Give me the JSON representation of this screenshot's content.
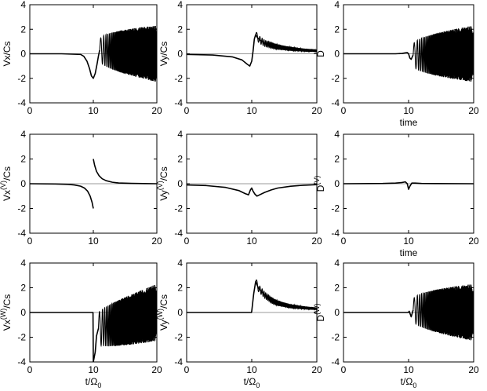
{
  "chart_data": [
    {
      "type": "line",
      "id": "p11",
      "ylabel": "Vx/Cs",
      "ylabel_sup": "",
      "xlabel": "",
      "xlabel_sub": "",
      "xlim": [
        0,
        20
      ],
      "ylim": [
        -4,
        4
      ],
      "xticks": [
        "0",
        "10",
        "20"
      ],
      "yticks": [
        "-4",
        "-2",
        "0",
        "2",
        "4"
      ],
      "x": [
        0,
        5,
        8,
        8.5,
        9,
        9.4,
        9.7,
        10,
        10.3,
        10.6,
        10.8,
        11
      ],
      "y": [
        0,
        0,
        -0.05,
        -0.2,
        -0.6,
        -1.2,
        -1.8,
        -2.0,
        -1.6,
        -0.8,
        -0.2,
        0.3
      ],
      "oscillation": {
        "start": 11,
        "end": 20,
        "amp_start": 0.8,
        "amp_end": 2.3
      }
    },
    {
      "type": "line",
      "id": "p12",
      "ylabel": "Vy/Cs",
      "ylabel_sup": "",
      "xlabel": "",
      "xlabel_sub": "",
      "xlim": [
        0,
        20
      ],
      "ylim": [
        -4,
        4
      ],
      "xticks": [
        "0",
        "10",
        "20"
      ],
      "yticks": [
        "-4",
        "-2",
        "0",
        "2",
        "4"
      ],
      "x": [
        0,
        4,
        7,
        8.5,
        9.3,
        9.7,
        10.0,
        10.2,
        10.4,
        10.6,
        10.9,
        11.3,
        12,
        13,
        14,
        16,
        18,
        20
      ],
      "y": [
        -0.05,
        -0.1,
        -0.25,
        -0.5,
        -0.85,
        -1.0,
        -0.6,
        0.2,
        1.2,
        1.55,
        1.3,
        1.1,
        0.85,
        0.7,
        0.55,
        0.4,
        0.3,
        0.25
      ],
      "oscillation": {
        "start": 10.6,
        "end": 20,
        "amp_start": 0.35,
        "amp_end": 0.1
      }
    },
    {
      "type": "line",
      "id": "p13",
      "ylabel": "D",
      "ylabel_sup": "",
      "xlabel": "time",
      "xlabel_sub": "",
      "xlim": [
        0,
        20
      ],
      "ylim": [
        -4,
        4
      ],
      "xticks": [
        "0",
        "10",
        "20"
      ],
      "yticks": [
        "-4",
        "-2",
        "0",
        "2",
        "4"
      ],
      "x": [
        0,
        8,
        9,
        9.5,
        9.8,
        10.0,
        10.2,
        10.4,
        10.7
      ],
      "y": [
        0,
        0,
        0.03,
        0.08,
        0.1,
        0,
        -0.35,
        -0.45,
        -0.1
      ],
      "oscillation": {
        "start": 10.7,
        "end": 20,
        "amp_start": 0.8,
        "amp_end": 2.3
      }
    },
    {
      "type": "line",
      "id": "p21",
      "ylabel": "Vx",
      "ylabel_sup": "(V)",
      "ylabel_suffix": "/Cs",
      "xlabel": "",
      "xlabel_sub": "",
      "xlim": [
        0,
        20
      ],
      "ylim": [
        -4,
        4
      ],
      "xticks": [
        "0",
        "10",
        "20"
      ],
      "yticks": [
        "-4",
        "-2",
        "0",
        "2",
        "4"
      ],
      "segments": [
        {
          "x": [
            0,
            4,
            6,
            7,
            8,
            8.6,
            9.1,
            9.5,
            9.8,
            10
          ],
          "y": [
            0,
            -0.02,
            -0.05,
            -0.1,
            -0.2,
            -0.35,
            -0.6,
            -1.0,
            -1.5,
            -2.0
          ]
        },
        {
          "x": [
            10,
            10.2,
            10.5,
            10.9,
            11.4,
            12,
            13,
            14,
            16,
            18,
            20
          ],
          "y": [
            2.0,
            1.5,
            1.0,
            0.65,
            0.4,
            0.25,
            0.12,
            0.06,
            0.03,
            0.01,
            0
          ]
        }
      ]
    },
    {
      "type": "line",
      "id": "p22",
      "ylabel": "Vy",
      "ylabel_sup": "(V)",
      "ylabel_suffix": "/Cs",
      "xlabel": "",
      "xlabel_sub": "",
      "xlim": [
        0,
        20
      ],
      "ylim": [
        -4,
        4
      ],
      "xticks": [
        "0",
        "10",
        "20"
      ],
      "yticks": [
        "-4",
        "-2",
        "0",
        "2",
        "4"
      ],
      "x": [
        0,
        3,
        6,
        8,
        9,
        9.5,
        9.8,
        10.0,
        10.2,
        10.5,
        10.8,
        11.2,
        12,
        13,
        14,
        16,
        18,
        20
      ],
      "y": [
        -0.1,
        -0.15,
        -0.3,
        -0.55,
        -0.8,
        -0.9,
        -0.5,
        -0.35,
        -0.6,
        -0.85,
        -1.0,
        -0.9,
        -0.7,
        -0.5,
        -0.35,
        -0.2,
        -0.12,
        -0.08
      ]
    },
    {
      "type": "line",
      "id": "p23",
      "ylabel": "D",
      "ylabel_sup": "(V)",
      "xlabel": "time",
      "xlabel_sub": "",
      "xlim": [
        0,
        20
      ],
      "ylim": [
        -4,
        4
      ],
      "xticks": [
        "0",
        "10",
        "20"
      ],
      "yticks": [
        "-4",
        "-2",
        "0",
        "2",
        "4"
      ],
      "x": [
        0,
        6,
        8,
        9,
        9.5,
        9.8,
        10.0,
        10.2,
        10.5,
        11,
        12,
        14,
        20
      ],
      "y": [
        0,
        0.02,
        0.05,
        0.1,
        0.15,
        0,
        -0.45,
        -0.2,
        0.05,
        0.05,
        0.02,
        0.01,
        0
      ]
    },
    {
      "type": "line",
      "id": "p31",
      "ylabel": "Vx",
      "ylabel_sup": "(W)",
      "ylabel_suffix": "/Cs",
      "xlabel": "t/Ω",
      "xlabel_sub": "0",
      "xlim": [
        0,
        20
      ],
      "ylim": [
        -4,
        4
      ],
      "xticks": [
        "0",
        "10",
        "20"
      ],
      "yticks": [
        "-4",
        "-2",
        "0",
        "2",
        "4"
      ],
      "x": [
        0,
        9.95,
        10,
        10.3,
        10.5,
        10.8
      ],
      "y": [
        0,
        0,
        -4,
        -3.2,
        -1.9,
        -1.3
      ],
      "oscillation": {
        "start": 10.8,
        "end": 20,
        "amp_start": 1.2,
        "amp_end": 2.3
      }
    },
    {
      "type": "line",
      "id": "p32",
      "ylabel": "Vy",
      "ylabel_sup": "(W)",
      "ylabel_suffix": "/Cs",
      "xlabel": "t/Ω",
      "xlabel_sub": "0",
      "xlim": [
        0,
        20
      ],
      "ylim": [
        -4,
        4
      ],
      "xticks": [
        "0",
        "10",
        "20"
      ],
      "yticks": [
        "-4",
        "-2",
        "0",
        "2",
        "4"
      ],
      "x": [
        0,
        9.95,
        10.0,
        10.3,
        10.6,
        11,
        12,
        13,
        14,
        16,
        18,
        20
      ],
      "y": [
        0,
        0,
        0.1,
        1.5,
        2.5,
        2.0,
        1.4,
        1.0,
        0.75,
        0.5,
        0.38,
        0.3
      ],
      "oscillation": {
        "start": 10.6,
        "end": 20,
        "amp_start": 0.35,
        "amp_end": 0.1
      }
    },
    {
      "type": "line",
      "id": "p33",
      "ylabel": "D",
      "ylabel_sup": "(W)",
      "xlabel": "t/Ω",
      "xlabel_sub": "0",
      "xlim": [
        0,
        20
      ],
      "ylim": [
        -4,
        4
      ],
      "xticks": [
        "0",
        "10",
        "20"
      ],
      "yticks": [
        "-4",
        "-2",
        "0",
        "2",
        "4"
      ],
      "x": [
        0,
        9.95,
        10.1,
        10.4,
        10.7
      ],
      "y": [
        0,
        0,
        0.1,
        -0.35,
        0.2
      ],
      "oscillation": {
        "start": 10.7,
        "end": 20,
        "amp_start": 0.8,
        "amp_end": 2.3
      }
    }
  ]
}
